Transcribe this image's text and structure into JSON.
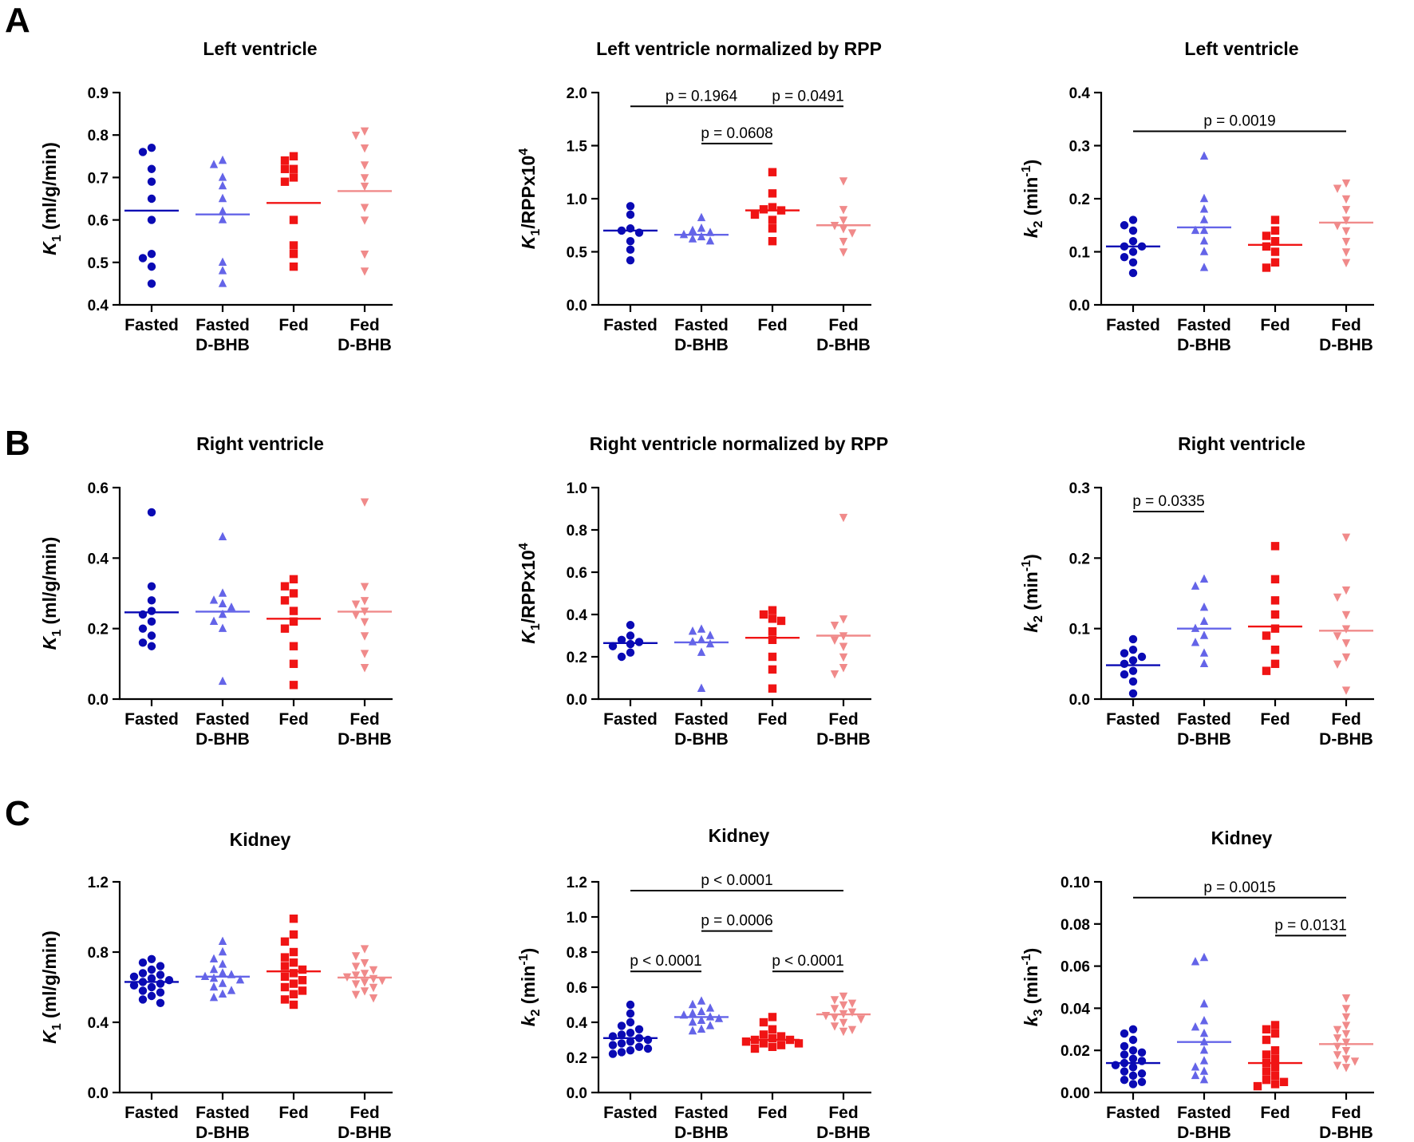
{
  "panel_labels": [
    "A",
    "B",
    "C"
  ],
  "colors": {
    "fasted": "#0a0ab4",
    "fasted_bhb": "#6464e8",
    "fed": "#f01414",
    "fed_bhb": "#f08a8a"
  },
  "marker_shapes": [
    "circle",
    "triangle-up",
    "square",
    "triangle-down"
  ],
  "chart_data": [
    {
      "type": "scatter",
      "title": "Left ventricle",
      "ylabel": "K1 (ml/g/min)",
      "ylabel_parts": {
        "sym": "K",
        "sub": "1",
        "rest": " (ml/g/min)",
        "sup": ""
      },
      "categories": [
        "Fasted",
        "Fasted D-BHB",
        "Fed",
        "Fed D-BHB"
      ],
      "ylim": [
        0.4,
        0.9
      ],
      "yticks": [
        "0.4",
        "0.5",
        "0.6",
        "0.7",
        "0.8",
        "0.9"
      ],
      "series": [
        {
          "name": "Fasted",
          "mean": 0.622,
          "values": [
            0.77,
            0.76,
            0.72,
            0.69,
            0.65,
            0.6,
            0.52,
            0.51,
            0.49,
            0.45
          ]
        },
        {
          "name": "Fasted D-BHB",
          "mean": 0.613,
          "values": [
            0.74,
            0.73,
            0.7,
            0.68,
            0.65,
            0.62,
            0.6,
            0.5,
            0.48,
            0.45
          ]
        },
        {
          "name": "Fed",
          "mean": 0.64,
          "values": [
            0.75,
            0.74,
            0.72,
            0.72,
            0.7,
            0.69,
            0.6,
            0.54,
            0.52,
            0.49
          ]
        },
        {
          "name": "Fed D-BHB",
          "mean": 0.668,
          "values": [
            0.81,
            0.8,
            0.77,
            0.73,
            0.7,
            0.68,
            0.63,
            0.6,
            0.52,
            0.48
          ]
        }
      ],
      "significance": []
    },
    {
      "type": "scatter",
      "title": "Left ventricle normalized by RPP",
      "ylabel": "K1/RPPx10^4",
      "ylabel_parts": {
        "sym": "K",
        "sub": "1",
        "rest": "/RPPx10",
        "sup": "4"
      },
      "categories": [
        "Fasted",
        "Fasted D-BHB",
        "Fed",
        "Fed D-BHB"
      ],
      "ylim": [
        0,
        2.0
      ],
      "yticks": [
        "0.0",
        "0.5",
        "1.0",
        "1.5",
        "2.0"
      ],
      "series": [
        {
          "name": "Fasted",
          "mean": 0.7,
          "values": [
            0.93,
            0.85,
            0.72,
            0.7,
            0.68,
            0.6,
            0.52,
            0.42
          ]
        },
        {
          "name": "Fasted D-BHB",
          "mean": 0.66,
          "values": [
            0.82,
            0.72,
            0.7,
            0.68,
            0.66,
            0.64,
            0.62,
            0.6
          ]
        },
        {
          "name": "Fed",
          "mean": 0.89,
          "values": [
            1.25,
            1.05,
            0.92,
            0.9,
            0.89,
            0.85,
            0.8,
            0.72,
            0.6
          ]
        },
        {
          "name": "Fed D-BHB",
          "mean": 0.75,
          "values": [
            1.17,
            0.9,
            0.8,
            0.75,
            0.72,
            0.68,
            0.6,
            0.5
          ]
        }
      ],
      "significance": [
        {
          "from": 0,
          "to": 2,
          "text": "p = 0.1964",
          "y": 1.87
        },
        {
          "from": 2,
          "to": 3,
          "text": "p = 0.0491",
          "y": 1.87
        },
        {
          "from": 1,
          "to": 2,
          "text": "p = 0.0608",
          "y": 1.52
        }
      ]
    },
    {
      "type": "scatter",
      "title": "Left ventricle",
      "ylabel": "k2 (min-1)",
      "ylabel_parts": {
        "sym": "k",
        "sub": "2",
        "rest": " (min",
        "sup": "-1",
        "tail": ")"
      },
      "categories": [
        "Fasted",
        "Fasted D-BHB",
        "Fed",
        "Fed D-BHB"
      ],
      "ylim": [
        0,
        0.4
      ],
      "yticks": [
        "0.0",
        "0.1",
        "0.2",
        "0.3",
        "0.4"
      ],
      "series": [
        {
          "name": "Fasted",
          "mean": 0.11,
          "values": [
            0.16,
            0.15,
            0.14,
            0.12,
            0.11,
            0.11,
            0.1,
            0.09,
            0.08,
            0.06
          ]
        },
        {
          "name": "Fasted D-BHB",
          "mean": 0.146,
          "values": [
            0.28,
            0.2,
            0.18,
            0.16,
            0.14,
            0.14,
            0.12,
            0.1,
            0.07
          ]
        },
        {
          "name": "Fed",
          "mean": 0.113,
          "values": [
            0.16,
            0.14,
            0.13,
            0.12,
            0.11,
            0.1,
            0.08,
            0.07
          ]
        },
        {
          "name": "Fed D-BHB",
          "mean": 0.155,
          "values": [
            0.23,
            0.22,
            0.2,
            0.18,
            0.16,
            0.15,
            0.14,
            0.12,
            0.1,
            0.08
          ]
        }
      ],
      "significance": [
        {
          "from": 0,
          "to": 3,
          "text": "p = 0.0019",
          "y": 0.327
        }
      ]
    },
    {
      "type": "scatter",
      "title": "Right ventricle",
      "ylabel": "K1 (ml/g/min)",
      "ylabel_parts": {
        "sym": "K",
        "sub": "1",
        "rest": " (ml/g/min)",
        "sup": ""
      },
      "categories": [
        "Fasted",
        "Fasted D-BHB",
        "Fed",
        "Fed D-BHB"
      ],
      "ylim": [
        0,
        0.6
      ],
      "yticks": [
        "0.0",
        "0.2",
        "0.4",
        "0.6"
      ],
      "series": [
        {
          "name": "Fasted",
          "mean": 0.246,
          "values": [
            0.53,
            0.32,
            0.28,
            0.25,
            0.24,
            0.22,
            0.2,
            0.18,
            0.16,
            0.15
          ]
        },
        {
          "name": "Fasted D-BHB",
          "mean": 0.248,
          "values": [
            0.46,
            0.3,
            0.28,
            0.27,
            0.26,
            0.24,
            0.22,
            0.2,
            0.05
          ]
        },
        {
          "name": "Fed",
          "mean": 0.228,
          "values": [
            0.34,
            0.32,
            0.3,
            0.28,
            0.25,
            0.22,
            0.2,
            0.15,
            0.1,
            0.04
          ]
        },
        {
          "name": "Fed D-BHB",
          "mean": 0.248,
          "values": [
            0.56,
            0.32,
            0.28,
            0.27,
            0.25,
            0.24,
            0.22,
            0.18,
            0.13,
            0.09
          ]
        }
      ],
      "significance": []
    },
    {
      "type": "scatter",
      "title": "Right ventricle normalized by RPP",
      "ylabel": "K1/RPPx10^4",
      "ylabel_parts": {
        "sym": "K",
        "sub": "1",
        "rest": "/RPPx10",
        "sup": "4"
      },
      "categories": [
        "Fasted",
        "Fasted D-BHB",
        "Fed",
        "Fed D-BHB"
      ],
      "ylim": [
        0,
        1.0
      ],
      "yticks": [
        "0.0",
        "0.2",
        "0.4",
        "0.6",
        "0.8",
        "1.0"
      ],
      "series": [
        {
          "name": "Fasted",
          "mean": 0.265,
          "values": [
            0.35,
            0.3,
            0.28,
            0.27,
            0.26,
            0.25,
            0.22,
            0.2
          ]
        },
        {
          "name": "Fasted D-BHB",
          "mean": 0.268,
          "values": [
            0.33,
            0.32,
            0.3,
            0.28,
            0.27,
            0.26,
            0.22,
            0.05
          ]
        },
        {
          "name": "Fed",
          "mean": 0.29,
          "values": [
            0.42,
            0.4,
            0.38,
            0.37,
            0.32,
            0.28,
            0.2,
            0.14,
            0.05
          ]
        },
        {
          "name": "Fed D-BHB",
          "mean": 0.3,
          "values": [
            0.86,
            0.38,
            0.35,
            0.3,
            0.28,
            0.25,
            0.2,
            0.15,
            0.12
          ]
        }
      ],
      "significance": []
    },
    {
      "type": "scatter",
      "title": "Right ventricle",
      "ylabel": "k2 (min-1)",
      "ylabel_parts": {
        "sym": "k",
        "sub": "2",
        "rest": " (min",
        "sup": "-1",
        "tail": ")"
      },
      "categories": [
        "Fasted",
        "Fasted D-BHB",
        "Fed",
        "Fed D-BHB"
      ],
      "ylim": [
        0,
        0.3
      ],
      "yticks": [
        "0.0",
        "0.1",
        "0.2",
        "0.3"
      ],
      "series": [
        {
          "name": "Fasted",
          "mean": 0.048,
          "values": [
            0.085,
            0.07,
            0.065,
            0.06,
            0.055,
            0.05,
            0.04,
            0.035,
            0.025,
            0.008
          ]
        },
        {
          "name": "Fasted D-BHB",
          "mean": 0.1,
          "values": [
            0.17,
            0.16,
            0.13,
            0.11,
            0.1,
            0.09,
            0.08,
            0.065,
            0.05
          ]
        },
        {
          "name": "Fed",
          "mean": 0.103,
          "values": [
            0.217,
            0.17,
            0.14,
            0.12,
            0.1,
            0.09,
            0.07,
            0.05,
            0.04
          ]
        },
        {
          "name": "Fed D-BHB",
          "mean": 0.097,
          "values": [
            0.23,
            0.155,
            0.145,
            0.12,
            0.1,
            0.09,
            0.08,
            0.06,
            0.05,
            0.013
          ]
        }
      ],
      "significance": [
        {
          "from": 0,
          "to": 1,
          "text": "p = 0.0335",
          "y": 0.266
        }
      ]
    },
    {
      "type": "scatter",
      "title": "Kidney",
      "ylabel": "K1 (ml/g/min)",
      "ylabel_parts": {
        "sym": "K",
        "sub": "1",
        "rest": " (ml/g/min)",
        "sup": ""
      },
      "categories": [
        "Fasted",
        "Fasted D-BHB",
        "Fed",
        "Fed D-BHB"
      ],
      "ylim": [
        0,
        1.2
      ],
      "yticks": [
        "0.0",
        "0.4",
        "0.8",
        "1.2"
      ],
      "series": [
        {
          "name": "Fasted",
          "mean": 0.63,
          "values": [
            0.76,
            0.74,
            0.72,
            0.7,
            0.68,
            0.67,
            0.66,
            0.65,
            0.64,
            0.63,
            0.62,
            0.61,
            0.6,
            0.58,
            0.57,
            0.55,
            0.53,
            0.51
          ]
        },
        {
          "name": "Fasted D-BHB",
          "mean": 0.66,
          "values": [
            0.86,
            0.8,
            0.76,
            0.73,
            0.7,
            0.68,
            0.67,
            0.66,
            0.65,
            0.64,
            0.62,
            0.6,
            0.58,
            0.56,
            0.54
          ]
        },
        {
          "name": "Fed",
          "mean": 0.69,
          "values": [
            0.99,
            0.9,
            0.86,
            0.8,
            0.77,
            0.74,
            0.72,
            0.7,
            0.68,
            0.66,
            0.64,
            0.62,
            0.6,
            0.58,
            0.56,
            0.53,
            0.5
          ]
        },
        {
          "name": "Fed D-BHB",
          "mean": 0.655,
          "values": [
            0.82,
            0.78,
            0.74,
            0.72,
            0.7,
            0.68,
            0.67,
            0.66,
            0.65,
            0.64,
            0.63,
            0.62,
            0.6,
            0.58,
            0.56,
            0.54
          ]
        }
      ],
      "significance": []
    },
    {
      "type": "scatter",
      "title": "Kidney",
      "ylabel": "k2 (min-1)",
      "ylabel_parts": {
        "sym": "k",
        "sub": "2",
        "rest": " (min",
        "sup": "-1",
        "tail": ")"
      },
      "categories": [
        "Fasted",
        "Fasted D-BHB",
        "Fed",
        "Fed D-BHB"
      ],
      "ylim": [
        0,
        1.2
      ],
      "yticks": [
        "0.0",
        "0.2",
        "0.4",
        "0.6",
        "0.8",
        "1.0",
        "1.2"
      ],
      "series": [
        {
          "name": "Fasted",
          "mean": 0.31,
          "values": [
            0.5,
            0.45,
            0.4,
            0.38,
            0.36,
            0.34,
            0.33,
            0.32,
            0.31,
            0.3,
            0.29,
            0.28,
            0.27,
            0.26,
            0.25,
            0.24,
            0.23,
            0.22
          ]
        },
        {
          "name": "Fasted D-BHB",
          "mean": 0.43,
          "values": [
            0.52,
            0.5,
            0.48,
            0.46,
            0.45,
            0.44,
            0.43,
            0.42,
            0.41,
            0.4,
            0.38,
            0.36,
            0.35
          ]
        },
        {
          "name": "Fed",
          "mean": 0.3,
          "values": [
            0.43,
            0.4,
            0.36,
            0.33,
            0.32,
            0.31,
            0.3,
            0.3,
            0.29,
            0.28,
            0.28,
            0.27,
            0.26,
            0.25
          ]
        },
        {
          "name": "Fed D-BHB",
          "mean": 0.445,
          "values": [
            0.55,
            0.53,
            0.51,
            0.5,
            0.48,
            0.46,
            0.45,
            0.44,
            0.43,
            0.42,
            0.4,
            0.38,
            0.36,
            0.35
          ]
        }
      ],
      "significance": [
        {
          "from": 0,
          "to": 3,
          "text": "p < 0.0001",
          "y": 1.15
        },
        {
          "from": 1,
          "to": 2,
          "text": "p = 0.0006",
          "y": 0.92
        },
        {
          "from": 0,
          "to": 1,
          "text": "p < 0.0001",
          "y": 0.69
        },
        {
          "from": 2,
          "to": 3,
          "text": "p < 0.0001",
          "y": 0.69
        }
      ]
    },
    {
      "type": "scatter",
      "title": "Kidney",
      "ylabel": "k3 (min-1)",
      "ylabel_parts": {
        "sym": "k",
        "sub": "3",
        "rest": " (min",
        "sup": "-1",
        "tail": ")"
      },
      "categories": [
        "Fasted",
        "Fasted D-BHB",
        "Fed",
        "Fed D-BHB"
      ],
      "ylim": [
        0,
        0.1
      ],
      "yticks": [
        "0.00",
        "0.02",
        "0.04",
        "0.06",
        "0.08",
        "0.10"
      ],
      "series": [
        {
          "name": "Fasted",
          "mean": 0.014,
          "values": [
            0.03,
            0.028,
            0.025,
            0.022,
            0.02,
            0.019,
            0.018,
            0.016,
            0.015,
            0.014,
            0.013,
            0.012,
            0.01,
            0.009,
            0.008,
            0.006,
            0.005,
            0.004
          ]
        },
        {
          "name": "Fasted D-BHB",
          "mean": 0.024,
          "values": [
            0.064,
            0.062,
            0.042,
            0.034,
            0.031,
            0.028,
            0.024,
            0.02,
            0.015,
            0.012,
            0.01,
            0.008,
            0.006
          ]
        },
        {
          "name": "Fed",
          "mean": 0.014,
          "values": [
            0.032,
            0.03,
            0.028,
            0.025,
            0.02,
            0.018,
            0.016,
            0.014,
            0.012,
            0.01,
            0.008,
            0.006,
            0.005,
            0.004,
            0.003
          ]
        },
        {
          "name": "Fed D-BHB",
          "mean": 0.023,
          "values": [
            0.045,
            0.04,
            0.036,
            0.032,
            0.03,
            0.028,
            0.026,
            0.024,
            0.022,
            0.02,
            0.018,
            0.016,
            0.015,
            0.013,
            0.012
          ]
        }
      ],
      "significance": [
        {
          "from": 0,
          "to": 3,
          "text": "p = 0.0015",
          "y": 0.0925
        },
        {
          "from": 2,
          "to": 3,
          "text": "p = 0.0131",
          "y": 0.0745
        }
      ]
    }
  ]
}
